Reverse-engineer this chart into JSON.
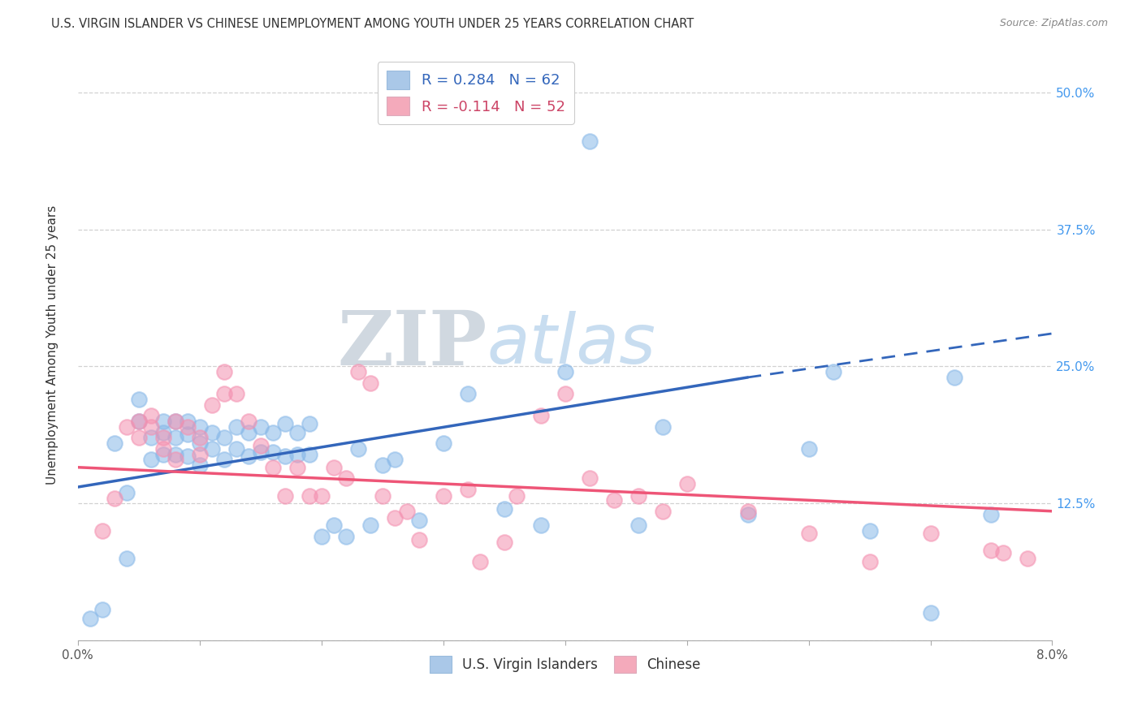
{
  "title": "U.S. VIRGIN ISLANDER VS CHINESE UNEMPLOYMENT AMONG YOUTH UNDER 25 YEARS CORRELATION CHART",
  "source": "Source: ZipAtlas.com",
  "ylabel": "Unemployment Among Youth under 25 years",
  "xlim": [
    0.0,
    0.08
  ],
  "ylim": [
    0.0,
    0.54
  ],
  "yticks": [
    0.0,
    0.125,
    0.25,
    0.375,
    0.5
  ],
  "ytick_labels": [
    "",
    "12.5%",
    "25.0%",
    "37.5%",
    "50.0%"
  ],
  "xticks": [
    0.0,
    0.01,
    0.02,
    0.03,
    0.04,
    0.05,
    0.06,
    0.07,
    0.08
  ],
  "legend_blue_label": "R = 0.284   N = 62",
  "legend_pink_label": "R = -0.114   N = 52",
  "legend_blue_color": "#aac8e8",
  "legend_pink_color": "#f4aabb",
  "scatter_blue_color": "#88b8e8",
  "scatter_pink_color": "#f490b0",
  "line_blue_color": "#3366bb",
  "line_pink_color": "#ee5577",
  "watermark_zip": "ZIP",
  "watermark_atlas": "atlas",
  "watermark_zip_color": "#d0d8e0",
  "watermark_atlas_color": "#c8ddf0",
  "blue_scatter_x": [
    0.001,
    0.002,
    0.003,
    0.004,
    0.004,
    0.005,
    0.005,
    0.006,
    0.006,
    0.007,
    0.007,
    0.007,
    0.008,
    0.008,
    0.008,
    0.009,
    0.009,
    0.009,
    0.01,
    0.01,
    0.01,
    0.011,
    0.011,
    0.012,
    0.012,
    0.013,
    0.013,
    0.014,
    0.014,
    0.015,
    0.015,
    0.016,
    0.016,
    0.017,
    0.017,
    0.018,
    0.018,
    0.019,
    0.019,
    0.02,
    0.021,
    0.022,
    0.023,
    0.024,
    0.025,
    0.026,
    0.028,
    0.03,
    0.032,
    0.035,
    0.038,
    0.04,
    0.042,
    0.046,
    0.048,
    0.055,
    0.06,
    0.062,
    0.065,
    0.07,
    0.072,
    0.075
  ],
  "blue_scatter_y": [
    0.02,
    0.028,
    0.18,
    0.135,
    0.075,
    0.22,
    0.2,
    0.185,
    0.165,
    0.2,
    0.19,
    0.17,
    0.2,
    0.185,
    0.17,
    0.2,
    0.188,
    0.168,
    0.195,
    0.18,
    0.16,
    0.19,
    0.175,
    0.185,
    0.165,
    0.195,
    0.175,
    0.19,
    0.168,
    0.195,
    0.172,
    0.19,
    0.172,
    0.198,
    0.168,
    0.19,
    0.17,
    0.198,
    0.17,
    0.095,
    0.105,
    0.095,
    0.175,
    0.105,
    0.16,
    0.165,
    0.11,
    0.18,
    0.225,
    0.12,
    0.105,
    0.245,
    0.455,
    0.105,
    0.195,
    0.115,
    0.175,
    0.245,
    0.1,
    0.025,
    0.24,
    0.115
  ],
  "pink_scatter_x": [
    0.002,
    0.003,
    0.004,
    0.005,
    0.005,
    0.006,
    0.006,
    0.007,
    0.007,
    0.008,
    0.008,
    0.009,
    0.01,
    0.01,
    0.011,
    0.012,
    0.012,
    0.013,
    0.014,
    0.015,
    0.016,
    0.017,
    0.018,
    0.019,
    0.02,
    0.021,
    0.022,
    0.023,
    0.024,
    0.025,
    0.026,
    0.027,
    0.028,
    0.03,
    0.032,
    0.033,
    0.035,
    0.036,
    0.038,
    0.04,
    0.042,
    0.044,
    0.046,
    0.048,
    0.05,
    0.055,
    0.06,
    0.065,
    0.07,
    0.075,
    0.076,
    0.078
  ],
  "pink_scatter_y": [
    0.1,
    0.13,
    0.195,
    0.185,
    0.2,
    0.205,
    0.195,
    0.185,
    0.175,
    0.2,
    0.165,
    0.195,
    0.185,
    0.17,
    0.215,
    0.245,
    0.225,
    0.225,
    0.2,
    0.178,
    0.158,
    0.132,
    0.158,
    0.132,
    0.132,
    0.158,
    0.148,
    0.245,
    0.235,
    0.132,
    0.112,
    0.118,
    0.092,
    0.132,
    0.138,
    0.072,
    0.09,
    0.132,
    0.205,
    0.225,
    0.148,
    0.128,
    0.132,
    0.118,
    0.143,
    0.118,
    0.098,
    0.072,
    0.098,
    0.082,
    0.08,
    0.075
  ],
  "blue_line_x": [
    0.0,
    0.055
  ],
  "blue_line_y": [
    0.14,
    0.24
  ],
  "blue_dash_line_x": [
    0.055,
    0.08
  ],
  "blue_dash_line_y": [
    0.24,
    0.28
  ],
  "pink_line_x": [
    0.0,
    0.08
  ],
  "pink_line_y": [
    0.158,
    0.118
  ]
}
